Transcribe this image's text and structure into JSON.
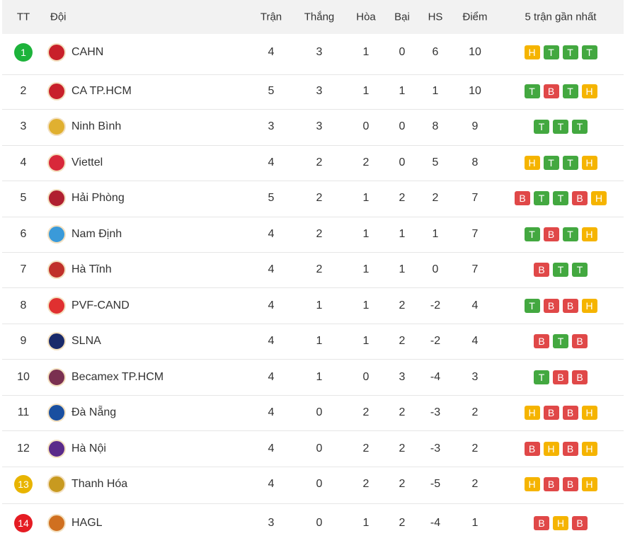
{
  "header": [
    "TT",
    "Đội",
    "Trận",
    "Thắng",
    "Hòa",
    "Bại",
    "HS",
    "Điểm",
    "5 trận gần nhất"
  ],
  "rows": [
    {
      "rank": "1",
      "team": "CAHN",
      "stats": [
        "4",
        "3",
        "1",
        "0",
        "6",
        "10"
      ],
      "form": [
        "H",
        "T",
        "T",
        "T"
      ]
    },
    {
      "rank": "2",
      "team": "CA TP.HCM",
      "stats": [
        "5",
        "3",
        "1",
        "1",
        "1",
        "10"
      ],
      "form": [
        "T",
        "B",
        "T",
        "H"
      ]
    },
    {
      "rank": "3",
      "team": "Ninh Bình",
      "stats": [
        "3",
        "3",
        "0",
        "0",
        "8",
        "9"
      ],
      "form": [
        "T",
        "T",
        "T"
      ]
    },
    {
      "rank": "4",
      "team": "Viettel",
      "stats": [
        "4",
        "2",
        "2",
        "0",
        "5",
        "8"
      ],
      "form": [
        "H",
        "T",
        "T",
        "H"
      ]
    },
    {
      "rank": "5",
      "team": "Hải Phòng",
      "stats": [
        "5",
        "2",
        "1",
        "2",
        "2",
        "7"
      ],
      "form": [
        "B",
        "T",
        "T",
        "B",
        "H"
      ]
    },
    {
      "rank": "6",
      "team": "Nam Định",
      "stats": [
        "4",
        "2",
        "1",
        "1",
        "1",
        "7"
      ],
      "form": [
        "T",
        "B",
        "T",
        "H"
      ]
    },
    {
      "rank": "7",
      "team": "Hà Tĩnh",
      "stats": [
        "4",
        "2",
        "1",
        "1",
        "0",
        "7"
      ],
      "form": [
        "B",
        "T",
        "T"
      ]
    },
    {
      "rank": "8",
      "team": "PVF-CAND",
      "stats": [
        "4",
        "1",
        "1",
        "2",
        "-2",
        "4"
      ],
      "form": [
        "T",
        "B",
        "B",
        "H"
      ]
    },
    {
      "rank": "9",
      "team": "SLNA",
      "stats": [
        "4",
        "1",
        "1",
        "2",
        "-2",
        "4"
      ],
      "form": [
        "B",
        "T",
        "B"
      ]
    },
    {
      "rank": "10",
      "team": "Becamex TP.HCM",
      "stats": [
        "4",
        "1",
        "0",
        "3",
        "-4",
        "3"
      ],
      "form": [
        "T",
        "B",
        "B"
      ]
    },
    {
      "rank": "11",
      "team": "Đà Nẵng",
      "stats": [
        "4",
        "0",
        "2",
        "2",
        "-3",
        "2"
      ],
      "form": [
        "H",
        "B",
        "B",
        "H"
      ]
    },
    {
      "rank": "12",
      "team": "Hà Nội",
      "stats": [
        "4",
        "0",
        "2",
        "2",
        "-3",
        "2"
      ],
      "form": [
        "B",
        "H",
        "B",
        "H"
      ]
    },
    {
      "rank": "13",
      "team": "Thanh Hóa",
      "stats": [
        "4",
        "0",
        "2",
        "2",
        "-5",
        "2"
      ],
      "form": [
        "H",
        "B",
        "B",
        "H"
      ]
    },
    {
      "rank": "14",
      "team": "HAGL",
      "stats": [
        "3",
        "0",
        "1",
        "2",
        "-4",
        "1"
      ],
      "form": [
        "B",
        "H",
        "B"
      ]
    }
  ]
}
